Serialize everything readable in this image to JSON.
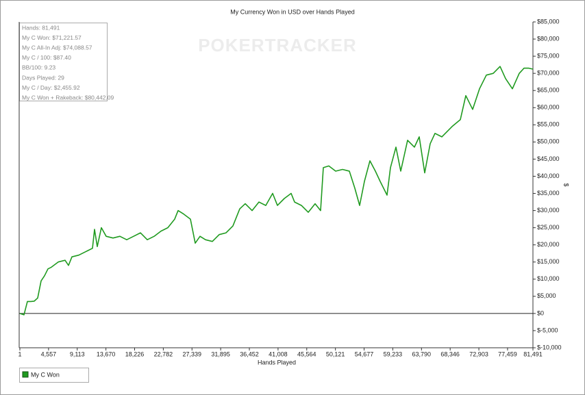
{
  "chart_data": {
    "type": "line",
    "title": "My Currency Won in USD over Hands Played",
    "watermark": "POKERTRACKER",
    "x_label": "Hands Played",
    "y_label": "$",
    "annotations": [
      "Hands: 81,491",
      "My C Won: $71,221.57",
      "My C All-In Adj: $74,088.57",
      "My C / 100: $87.40",
      "BB/100: 9.23",
      "Days Played: 29",
      "My C / Day: $2,455.92",
      "My C Won + Rakeback: $80,442.09"
    ],
    "xlim": [
      1,
      81491
    ],
    "xticks": [
      1,
      {
        "value": 4557,
        "label": "4,557"
      },
      {
        "value": 9113,
        "label": "9,113"
      },
      {
        "value": 13670,
        "label": "13,670"
      },
      {
        "value": 18226,
        "label": "18,226"
      },
      {
        "value": 22782,
        "label": "22,782"
      },
      {
        "value": 27339,
        "label": "27,339"
      },
      {
        "value": 31895,
        "label": "31,895"
      },
      {
        "value": 36452,
        "label": "36,452"
      },
      {
        "value": 41008,
        "label": "41,008"
      },
      {
        "value": 45564,
        "label": "45,564"
      },
      {
        "value": 50121,
        "label": "50,121"
      },
      {
        "value": 54677,
        "label": "54,677"
      },
      {
        "value": 59233,
        "label": "59,233"
      },
      {
        "value": 63790,
        "label": "63,790"
      },
      {
        "value": 68346,
        "label": "68,346"
      },
      {
        "value": 72903,
        "label": "72,903"
      },
      {
        "value": 77459,
        "label": "77,459"
      },
      {
        "value": 81491,
        "label": "81,491"
      }
    ],
    "ylim": [
      -10000,
      85000
    ],
    "yticks": [
      {
        "value": 85000,
        "label": "$85,000"
      },
      {
        "value": 80000,
        "label": "$80,000"
      },
      {
        "value": 75000,
        "label": "$75,000"
      },
      {
        "value": 70000,
        "label": "$70,000"
      },
      {
        "value": 65000,
        "label": "$65,000"
      },
      {
        "value": 60000,
        "label": "$60,000"
      },
      {
        "value": 55000,
        "label": "$55,000"
      },
      {
        "value": 50000,
        "label": "$50,000"
      },
      {
        "value": 45000,
        "label": "$45,000"
      },
      {
        "value": 40000,
        "label": "$40,000"
      },
      {
        "value": 35000,
        "label": "$35,000"
      },
      {
        "value": 30000,
        "label": "$30,000"
      },
      {
        "value": 25000,
        "label": "$25,000"
      },
      {
        "value": 20000,
        "label": "$20,000"
      },
      {
        "value": 15000,
        "label": "$15,000"
      },
      {
        "value": 10000,
        "label": "$10,000"
      },
      {
        "value": 5000,
        "label": "$5,000"
      },
      {
        "value": 0,
        "label": "$0"
      },
      {
        "value": -5000,
        "label": "$-5,000"
      },
      {
        "value": -10000,
        "label": "$-10,000"
      }
    ],
    "x": [
      1,
      654,
      1198,
      1742,
      2286,
      2830,
      3374,
      3918,
      4462,
      5006,
      6094,
      7182,
      7726,
      8270,
      9358,
      10446,
      11534,
      11860,
      12296,
      12948,
      13710,
      14798,
      15886,
      16974,
      18062,
      19150,
      20238,
      21326,
      22414,
      23502,
      24590,
      25134,
      26004,
      27092,
      27854,
      28616,
      29486,
      30574,
      31662,
      32750,
      33838,
      34926,
      35796,
      36884,
      37972,
      39060,
      40148,
      40910,
      41998,
      43086,
      43630,
      44718,
      45806,
      46894,
      47764,
      48200,
      49070,
      50158,
      51246,
      52334,
      53205,
      53966,
      54728,
      55598,
      56469,
      57230,
      58318,
      58862,
      59733,
      60494,
      61582,
      62670,
      63432,
      64302,
      65173,
      65934,
      67022,
      68654,
      69960,
      70830,
      71918,
      73006,
      74094,
      75182,
      76270,
      77141,
      78229,
      79317,
      80078,
      80840,
      81491
    ],
    "series": [
      {
        "name": "My C Won",
        "color": "#1f9a1f",
        "values": [
          0,
          -400,
          3500,
          3500,
          3600,
          4500,
          9500,
          11000,
          13000,
          13500,
          15000,
          15500,
          14000,
          16500,
          17000,
          18000,
          19000,
          24500,
          19500,
          25000,
          22500,
          22000,
          22500,
          21500,
          22500,
          23500,
          21500,
          22500,
          24000,
          25000,
          27500,
          30000,
          29000,
          27500,
          20500,
          22500,
          21500,
          21000,
          23000,
          23500,
          25500,
          30500,
          32000,
          30000,
          32500,
          31500,
          35000,
          31500,
          33500,
          35000,
          32500,
          31500,
          29500,
          32000,
          30000,
          42500,
          43000,
          41500,
          42000,
          41500,
          36500,
          31500,
          38500,
          44500,
          41500,
          38500,
          34500,
          42500,
          48500,
          41500,
          50500,
          48500,
          51500,
          41000,
          49500,
          52500,
          51500,
          54500,
          56500,
          63500,
          59500,
          65500,
          69500,
          70000,
          72000,
          68500,
          65500,
          70000,
          71500,
          71500,
          71222
        ]
      }
    ]
  }
}
